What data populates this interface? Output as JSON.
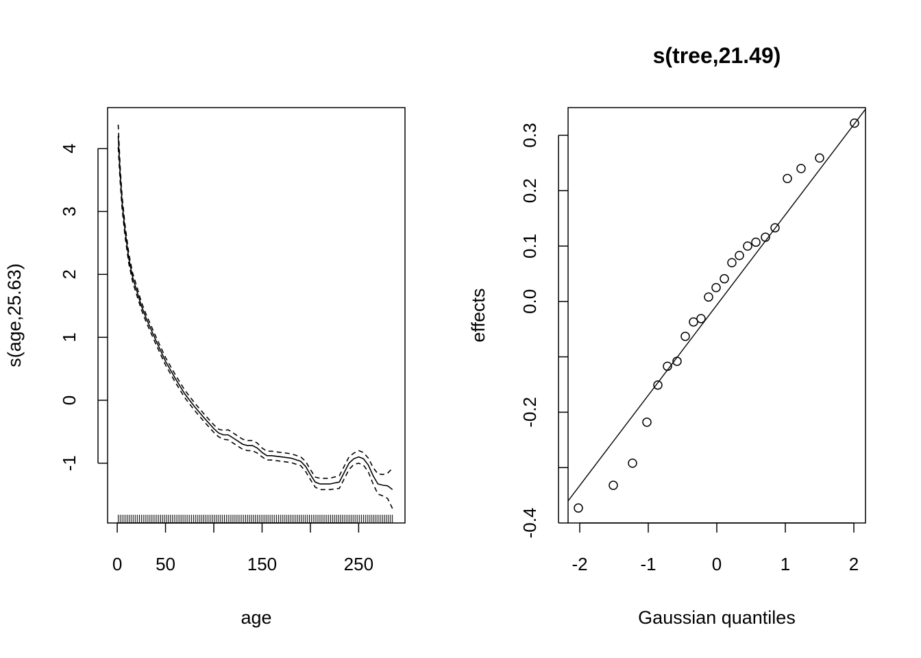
{
  "chart_data": [
    {
      "type": "line",
      "title": "",
      "xlabel": "age",
      "ylabel": "s(age,25.63)",
      "xlim": [
        -10,
        298
      ],
      "ylim": [
        -1.95,
        4.65
      ],
      "xticks": [
        0,
        50,
        150,
        250
      ],
      "yticks": [
        -1,
        0,
        1,
        2,
        3,
        4
      ],
      "grid": false,
      "legend": "none",
      "rug": "dense tick marks along the bottom for every age from 1 to 285",
      "series": [
        {
          "style": "solid",
          "x": [
            1,
            3,
            5,
            8,
            12,
            16,
            20,
            25,
            30,
            40,
            50,
            60,
            70,
            80,
            90,
            100,
            105,
            110,
            115,
            120,
            125,
            130,
            135,
            140,
            145,
            150,
            155,
            160,
            170,
            180,
            190,
            195,
            200,
            205,
            210,
            220,
            230,
            240,
            245,
            250,
            255,
            260,
            265,
            270,
            275,
            280,
            285
          ],
          "y": [
            4.2,
            3.6,
            3.15,
            2.7,
            2.25,
            1.95,
            1.75,
            1.5,
            1.3,
            0.95,
            0.62,
            0.35,
            0.1,
            -0.1,
            -0.28,
            -0.45,
            -0.52,
            -0.55,
            -0.55,
            -0.6,
            -0.65,
            -0.7,
            -0.72,
            -0.72,
            -0.76,
            -0.83,
            -0.88,
            -0.88,
            -0.9,
            -0.92,
            -0.97,
            -1.05,
            -1.18,
            -1.3,
            -1.33,
            -1.33,
            -1.3,
            -1.0,
            -0.93,
            -0.9,
            -0.93,
            -1.03,
            -1.2,
            -1.33,
            -1.35,
            -1.36,
            -1.42
          ]
        },
        {
          "style": "dashed",
          "x": [
            1,
            3,
            5,
            8,
            12,
            16,
            20,
            25,
            30,
            40,
            50,
            60,
            70,
            80,
            90,
            100,
            105,
            110,
            115,
            120,
            125,
            130,
            135,
            140,
            145,
            150,
            155,
            160,
            170,
            180,
            190,
            195,
            200,
            205,
            210,
            220,
            230,
            240,
            245,
            250,
            255,
            260,
            265,
            270,
            275,
            280,
            285
          ],
          "y": [
            4.38,
            3.72,
            3.25,
            2.79,
            2.33,
            2.02,
            1.82,
            1.56,
            1.36,
            1.01,
            0.68,
            0.41,
            0.16,
            -0.04,
            -0.22,
            -0.39,
            -0.46,
            -0.48,
            -0.47,
            -0.52,
            -0.57,
            -0.62,
            -0.64,
            -0.64,
            -0.68,
            -0.76,
            -0.81,
            -0.81,
            -0.83,
            -0.85,
            -0.9,
            -0.97,
            -1.1,
            -1.22,
            -1.24,
            -1.24,
            -1.2,
            -0.9,
            -0.84,
            -0.8,
            -0.83,
            -0.92,
            -1.07,
            -1.17,
            -1.18,
            -1.16,
            -1.08
          ]
        },
        {
          "style": "dashed",
          "x": [
            1,
            3,
            5,
            8,
            12,
            16,
            20,
            25,
            30,
            40,
            50,
            60,
            70,
            80,
            90,
            100,
            105,
            110,
            115,
            120,
            125,
            130,
            135,
            140,
            145,
            150,
            155,
            160,
            170,
            180,
            190,
            195,
            200,
            205,
            210,
            220,
            230,
            240,
            245,
            250,
            255,
            260,
            265,
            270,
            275,
            280,
            285
          ],
          "y": [
            4.02,
            3.48,
            3.05,
            2.61,
            2.17,
            1.88,
            1.68,
            1.44,
            1.24,
            0.89,
            0.56,
            0.29,
            0.04,
            -0.16,
            -0.34,
            -0.51,
            -0.58,
            -0.62,
            -0.63,
            -0.68,
            -0.73,
            -0.78,
            -0.8,
            -0.8,
            -0.84,
            -0.9,
            -0.95,
            -0.95,
            -0.97,
            -0.99,
            -1.04,
            -1.13,
            -1.26,
            -1.38,
            -1.42,
            -1.42,
            -1.4,
            -1.1,
            -1.02,
            -1.0,
            -1.03,
            -1.14,
            -1.33,
            -1.49,
            -1.52,
            -1.56,
            -1.72
          ]
        }
      ]
    },
    {
      "type": "scatter",
      "title": "s(tree,21.49)",
      "xlabel": "Gaussian quantiles",
      "ylabel": "effects",
      "xlim": [
        -2.17,
        2.17
      ],
      "ylim": [
        -0.4,
        0.35
      ],
      "xticks": [
        -2,
        -1,
        0,
        1,
        2
      ],
      "yticks": [
        -0.4,
        -0.3,
        -0.2,
        -0.1,
        0.0,
        0.1,
        0.2,
        0.3
      ],
      "ytick_labels": [
        "-0.4",
        "",
        "-0.2",
        "",
        "0.0",
        "0.1",
        "0.2",
        "0.3"
      ],
      "grid": false,
      "legend": "none",
      "points": {
        "x": [
          -2.02,
          -1.51,
          -1.23,
          -1.02,
          -0.86,
          -0.72,
          -0.58,
          -0.46,
          -0.34,
          -0.23,
          -0.12,
          -0.01,
          0.11,
          0.22,
          0.33,
          0.45,
          0.57,
          0.71,
          0.85,
          1.03,
          1.23,
          1.5,
          2.01
        ],
        "y": [
          -0.373,
          -0.332,
          -0.292,
          -0.218,
          -0.151,
          -0.117,
          -0.108,
          -0.063,
          -0.037,
          -0.031,
          0.008,
          0.025,
          0.041,
          0.07,
          0.083,
          0.1,
          0.107,
          0.116,
          0.133,
          0.222,
          0.24,
          0.259,
          0.322
        ]
      },
      "reference_line": {
        "x": [
          -2.2,
          2.2
        ],
        "y": [
          -0.365,
          0.352
        ]
      }
    }
  ]
}
